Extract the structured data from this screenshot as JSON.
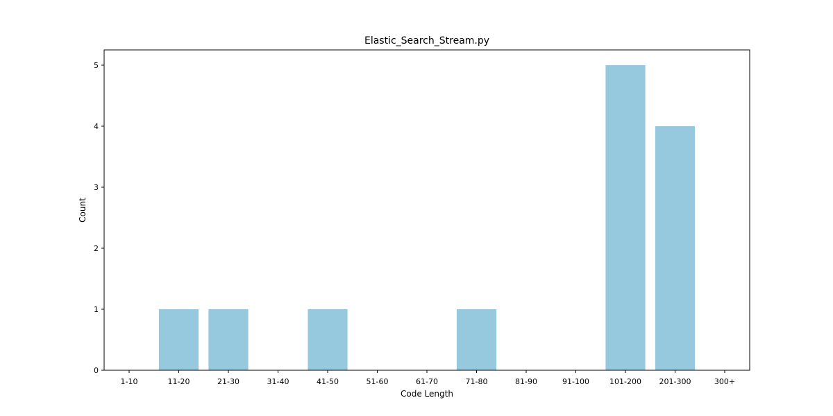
{
  "chart_data": {
    "type": "bar",
    "title": "Elastic_Search_Stream.py",
    "xlabel": "Code Length",
    "ylabel": "Count",
    "categories": [
      "1-10",
      "11-20",
      "21-30",
      "31-40",
      "41-50",
      "51-60",
      "61-70",
      "71-80",
      "81-90",
      "91-100",
      "101-200",
      "201-300",
      "300+"
    ],
    "values": [
      0,
      1,
      1,
      0,
      1,
      0,
      0,
      1,
      0,
      0,
      5,
      4,
      0
    ],
    "ylim": [
      0,
      5.25
    ],
    "yticks": [
      "0",
      "1",
      "2",
      "3",
      "4",
      "5"
    ],
    "grid": false,
    "bar_color": "#96c9de"
  }
}
